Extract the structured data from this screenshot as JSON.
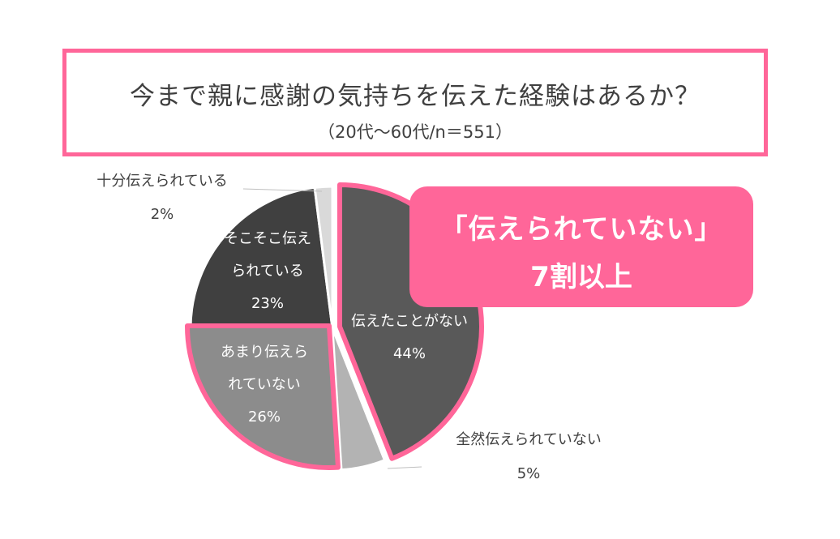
{
  "title": {
    "main": "今まで親に感謝の気持ちを伝えた経験はあるか？",
    "sub": "（20代～60代/n＝551）"
  },
  "callout": {
    "line1": "「伝えられていない」",
    "line2": "7割以上"
  },
  "colors": {
    "accent": "#ff6699",
    "text_dark": "#404040",
    "slice_label_light": "#ffffff"
  },
  "chart_data": {
    "type": "pie",
    "start": "12 o'clock",
    "direction": "clockwise",
    "highlighted": [
      "伝えたことがない",
      "あまり伝えられていない"
    ],
    "slices": [
      {
        "label": "伝えたことがない",
        "label_lines": [
          "伝えたことがない"
        ],
        "value": 44,
        "value_label": "44%",
        "color": "#595959",
        "label_color": "#ffffff",
        "label_position": "inside",
        "exploded": true
      },
      {
        "label": "全然伝えられていない",
        "label_lines": [
          "全然伝えられていない"
        ],
        "value": 5,
        "value_label": "5%",
        "color": "#b3b3b3",
        "label_color": "#404040",
        "label_position": "outside"
      },
      {
        "label": "あまり伝えられていない",
        "label_lines": [
          "あまり伝えら",
          "れていない"
        ],
        "value": 26,
        "value_label": "26%",
        "color": "#8c8c8c",
        "label_color": "#ffffff",
        "label_position": "inside",
        "exploded": true
      },
      {
        "label": "そこそこ伝えられている",
        "label_lines": [
          "そこそこ伝え",
          "られている"
        ],
        "value": 23,
        "value_label": "23%",
        "color": "#404040",
        "label_color": "#ffffff",
        "label_position": "inside"
      },
      {
        "label": "十分伝えられている",
        "label_lines": [
          "十分伝えられている"
        ],
        "value": 2,
        "value_label": "2%",
        "color": "#d9d9d9",
        "label_color": "#404040",
        "label_position": "outside"
      }
    ]
  }
}
